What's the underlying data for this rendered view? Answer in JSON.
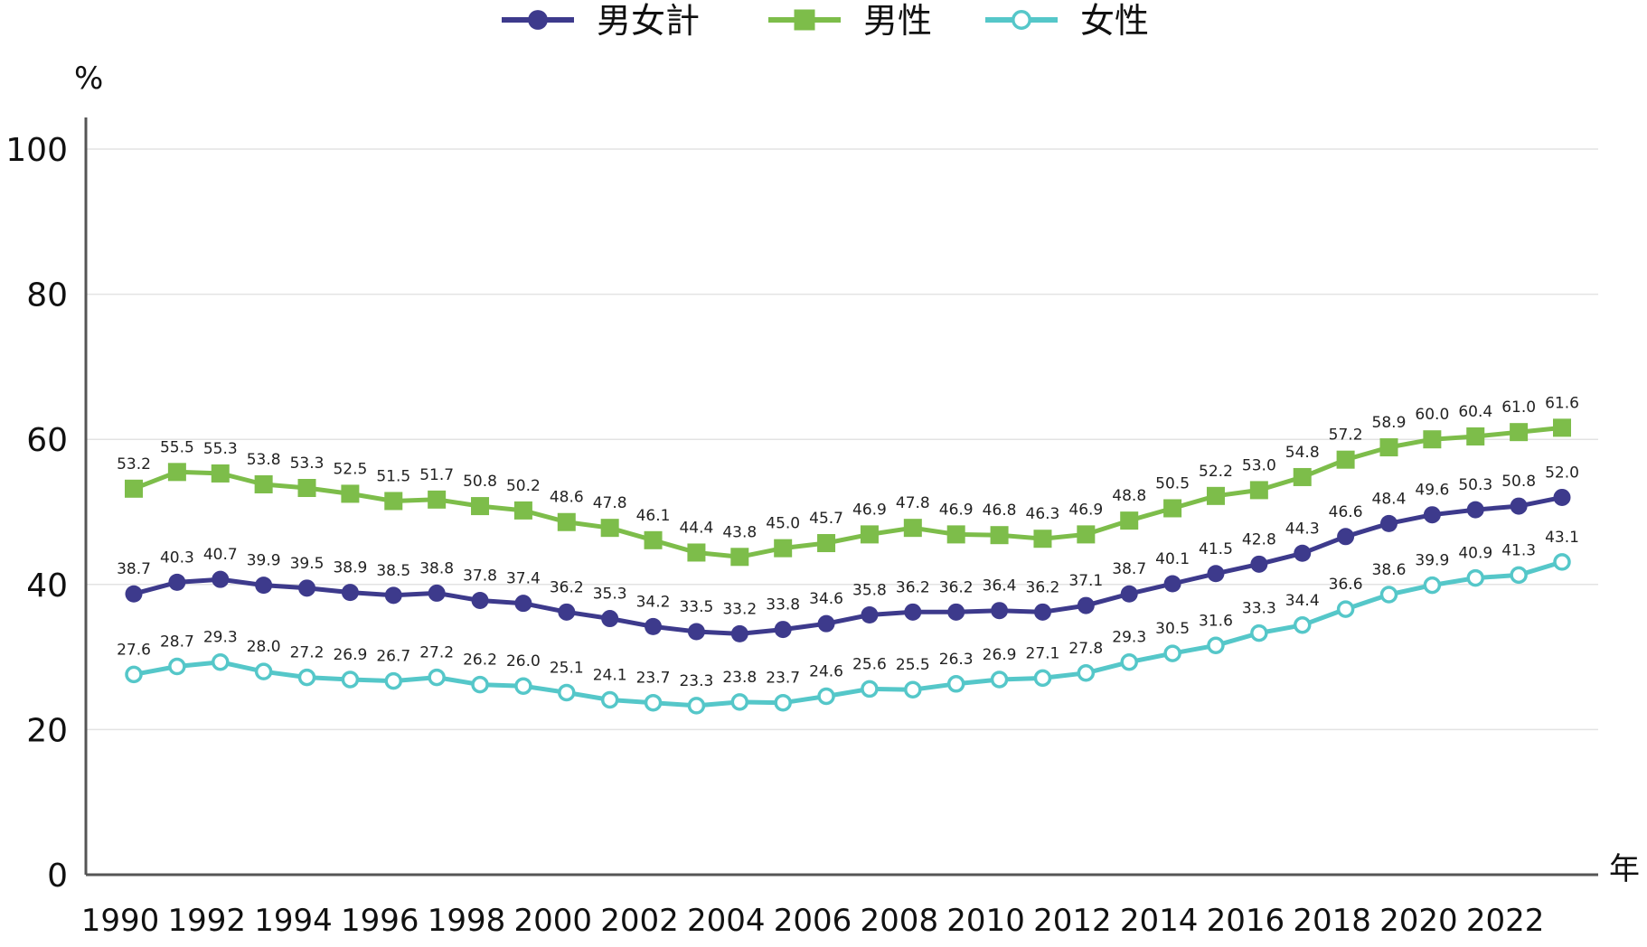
{
  "chart_data": {
    "type": "line",
    "title": "",
    "ylabel": "%",
    "xlabel": "年",
    "ylim": [
      0,
      100
    ],
    "yticks": [
      "0",
      "20",
      "40",
      "60",
      "80",
      "100"
    ],
    "xticks": [
      "1990",
      "1992",
      "1994",
      "1996",
      "1998",
      "2000",
      "2002",
      "2004",
      "2006",
      "2008",
      "2010",
      "2012",
      "2014",
      "2016",
      "2018",
      "2020",
      "2022"
    ],
    "x": [
      1990,
      1991,
      1992,
      1993,
      1994,
      1995,
      1996,
      1997,
      1998,
      1999,
      2000,
      2001,
      2002,
      2003,
      2004,
      2005,
      2006,
      2007,
      2008,
      2009,
      2010,
      2011,
      2012,
      2013,
      2014,
      2015,
      2016,
      2017,
      2018,
      2019,
      2020,
      2021,
      2022,
      2023
    ],
    "grid": true,
    "legend": "top-center",
    "series": [
      {
        "name": "男女計",
        "color": "#3d3a8c",
        "marker": "circle-filled",
        "values": [
          38.7,
          40.3,
          40.7,
          39.9,
          39.5,
          38.9,
          38.5,
          38.8,
          37.8,
          37.4,
          36.2,
          35.3,
          34.2,
          33.5,
          33.2,
          33.8,
          34.6,
          35.8,
          36.2,
          36.2,
          36.4,
          36.2,
          37.1,
          38.7,
          40.1,
          41.5,
          42.8,
          44.3,
          46.6,
          48.4,
          49.6,
          50.3,
          50.8,
          52.0
        ],
        "labels": [
          "38.7",
          "40.3",
          "40.7",
          "39.9",
          "39.5",
          "38.9",
          "38.5",
          "38.8",
          "37.8",
          "37.4",
          "36.2",
          "35.3",
          "34.2",
          "33.5",
          "33.2",
          "33.8",
          "34.6",
          "35.8",
          "36.2",
          "36.2",
          "36.4",
          "36.2",
          "37.1",
          "38.7",
          "40.1",
          "41.5",
          "42.8",
          "44.3",
          "46.6",
          "48.4",
          "49.6",
          "50.3",
          "50.8",
          "52.0"
        ]
      },
      {
        "name": "男性",
        "color": "#7dbd4a",
        "marker": "square-filled",
        "values": [
          53.2,
          55.5,
          55.3,
          53.8,
          53.3,
          52.5,
          51.5,
          51.7,
          50.8,
          50.2,
          48.6,
          47.8,
          46.1,
          44.4,
          43.8,
          45.0,
          45.7,
          46.9,
          47.8,
          46.9,
          46.8,
          46.3,
          46.9,
          48.8,
          50.5,
          52.2,
          53.0,
          54.8,
          57.2,
          58.9,
          60.0,
          60.4,
          61.0,
          61.6
        ],
        "labels": [
          "53.2",
          "55.5",
          "55.3",
          "53.8",
          "53.3",
          "52.5",
          "51.5",
          "51.7",
          "50.8",
          "50.2",
          "48.6",
          "47.8",
          "46.1",
          "44.4",
          "43.8",
          "45.0",
          "45.7",
          "46.9",
          "47.8",
          "46.9",
          "46.8",
          "46.3",
          "46.9",
          "48.8",
          "50.5",
          "52.2",
          "53.0",
          "54.8",
          "57.2",
          "58.9",
          "60.0",
          "60.4",
          "61.0",
          "61.6"
        ]
      },
      {
        "name": "女性",
        "color": "#55c7c9",
        "marker": "circle-open",
        "values": [
          27.6,
          28.7,
          29.3,
          28.0,
          27.2,
          26.9,
          26.7,
          27.2,
          26.2,
          26.0,
          25.1,
          24.1,
          23.7,
          23.3,
          23.8,
          23.7,
          24.6,
          25.6,
          25.5,
          26.3,
          26.9,
          27.1,
          27.8,
          29.3,
          30.5,
          31.6,
          33.3,
          34.4,
          36.6,
          38.6,
          39.9,
          40.9,
          41.3,
          43.1
        ],
        "labels": [
          "27.6",
          "28.7",
          "29.3",
          "28.0",
          "27.2",
          "26.9",
          "26.7",
          "27.2",
          "26.2",
          "26.0",
          "25.1",
          "24.1",
          "23.7",
          "23.3",
          "23.8",
          "23.7",
          "24.6",
          "25.6",
          "25.5",
          "26.3",
          "26.9",
          "27.1",
          "27.8",
          "29.3",
          "30.5",
          "31.6",
          "33.3",
          "34.4",
          "36.6",
          "38.6",
          "39.9",
          "40.9",
          "41.3",
          "43.1"
        ]
      }
    ]
  }
}
